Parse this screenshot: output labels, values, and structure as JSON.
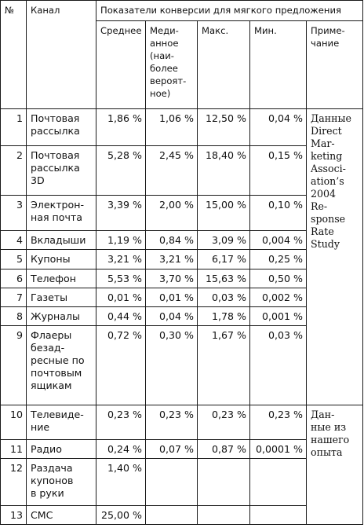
{
  "header": {
    "num": "№",
    "channel": "Канал",
    "group": "Показатели конверсии для мягкого предложения",
    "avg": "Среднее",
    "median": "Меди-\nанное\n(наи-\nболее\nвероят-\nное)",
    "max": "Макс.",
    "min": "Мин.",
    "note": "Приме-\nчание"
  },
  "rows": [
    {
      "n": "1",
      "channel": "Почтовая\nрассылка",
      "avg": "1,86 %",
      "median": "1,06 %",
      "max": "12,50 %",
      "min": "0,04 %"
    },
    {
      "n": "2",
      "channel": "Почтовая\nрассылка\n3D",
      "avg": "5,28 %",
      "median": "2,45 %",
      "max": "18,40 %",
      "min": "0,15 %"
    },
    {
      "n": "3",
      "channel": "Электрон-\nная почта",
      "avg": "3,39 %",
      "median": "2,00 %",
      "max": "15,00 %",
      "min": "0,10 %"
    },
    {
      "n": "4",
      "channel": "Вкладыши",
      "avg": "1,19 %",
      "median": "0,84 %",
      "max": "3,09 %",
      "min": "0,004 %"
    },
    {
      "n": "5",
      "channel": "Купоны",
      "avg": "3,21 %",
      "median": "3,21 %",
      "max": "6,17 %",
      "min": "0,25 %"
    },
    {
      "n": "6",
      "channel": "Телефон",
      "avg": "5,53 %",
      "median": "3,70 %",
      "max": "15,63 %",
      "min": "0,50 %"
    },
    {
      "n": "7",
      "channel": "Газеты",
      "avg": "0,01 %",
      "median": "0,01 %",
      "max": "0,03 %",
      "min": "0,002 %"
    },
    {
      "n": "8",
      "channel": "Журналы",
      "avg": "0,44 %",
      "median": "0,04 %",
      "max": "1,78 %",
      "min": "0,001 %"
    },
    {
      "n": "9",
      "channel": "Флаеры\nбезад-\nресные по\nпочтовым\nящикам",
      "avg": "0,72 %",
      "median": "0,30 %",
      "max": "1,67 %",
      "min": "0,03 %"
    },
    {
      "n": "10",
      "channel": "Телевиде-\nние",
      "avg": "0,23 %",
      "median": "0,23 %",
      "max": "0,23 %",
      "min": "0,23 %"
    },
    {
      "n": "11",
      "channel": "Радио",
      "avg": "0,24 %",
      "median": "0,07 %",
      "max": "0,87 %",
      "min": "0,0001 %"
    },
    {
      "n": "12",
      "channel": "Раздача\nкупонов\nв руки",
      "avg": "1,40 %",
      "median": "",
      "max": "",
      "min": ""
    },
    {
      "n": "13",
      "channel": "СМС",
      "avg": "25,00 %",
      "median": "",
      "max": "",
      "min": ""
    }
  ],
  "notes": {
    "dma": "Данные\nDirect\nMar-\nketing\nAssoci-\nation’s\n2004\nRe-\nsponse\nRate\nStudy",
    "own": "Дан-\nные из\nнашего\nопыта"
  }
}
